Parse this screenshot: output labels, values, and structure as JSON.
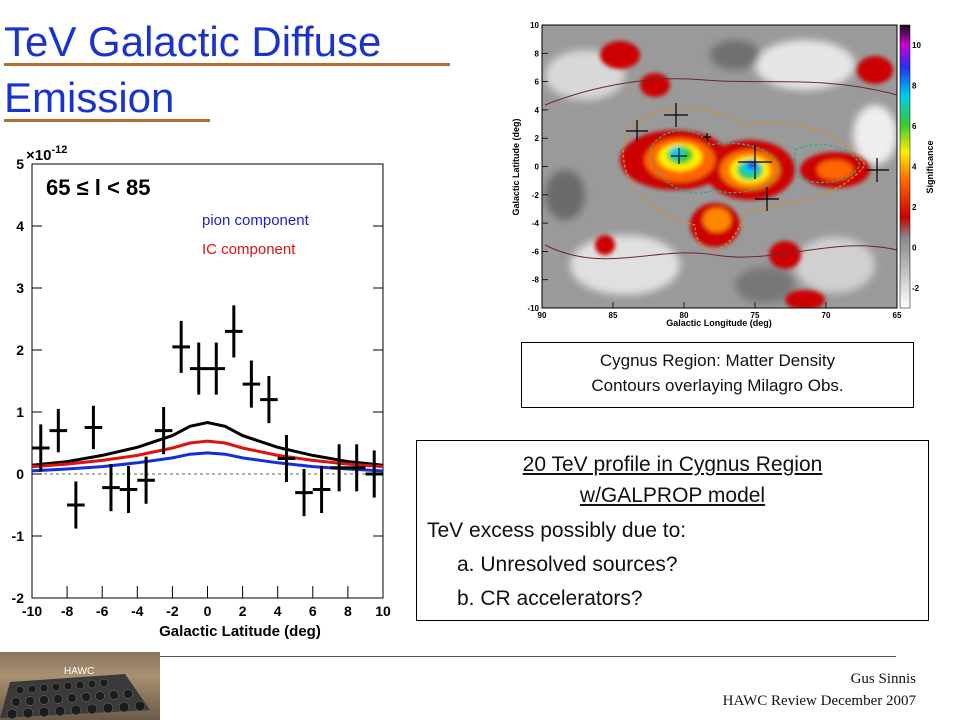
{
  "title": {
    "line1": "TeV Galactic Diffuse",
    "line2": "Emission"
  },
  "plot": {
    "exponent_label": "×10",
    "exponent_power": "-12",
    "range_label": "65 ≤ l < 85",
    "legend_pion": "pion component",
    "legend_ic": "IC component",
    "xlabel": "Galactic Latitude (deg)",
    "xticks": [
      "-10",
      "-8",
      "-6",
      "-4",
      "-2",
      "0",
      "2",
      "4",
      "6",
      "8",
      "10"
    ],
    "yticks": [
      "-2",
      "-1",
      "0",
      "1",
      "2",
      "3",
      "4",
      "5"
    ],
    "colors": {
      "total": "#000000",
      "pion": "#e01010",
      "ic": "#1030e0"
    }
  },
  "chart_data": {
    "type": "scatter",
    "xlabel": "Galactic Latitude (deg)",
    "ylabel": "",
    "xlim": [
      -10,
      10
    ],
    "ylim": [
      -2,
      5
    ],
    "y_scale_factor": "×10^-12",
    "annotation": "65 ≤ l < 85",
    "series": [
      {
        "name": "data",
        "x": [
          -9.5,
          -8.5,
          -7.5,
          -6.5,
          -5.5,
          -4.5,
          -3.5,
          -2.5,
          -1.5,
          -0.5,
          0.5,
          1.5,
          2.5,
          3.5,
          4.5,
          5.5,
          6.5,
          7.5,
          8.5,
          9.5
        ],
        "y": [
          0.42,
          0.7,
          -0.5,
          0.75,
          -0.22,
          -0.25,
          -0.1,
          0.7,
          2.05,
          1.7,
          1.7,
          2.3,
          1.45,
          1.2,
          0.25,
          -0.3,
          -0.25,
          0.1,
          0.1,
          0.0
        ],
        "yerr": [
          0.38,
          0.35,
          0.38,
          0.35,
          0.38,
          0.38,
          0.38,
          0.38,
          0.42,
          0.42,
          0.42,
          0.42,
          0.38,
          0.38,
          0.38,
          0.38,
          0.38,
          0.38,
          0.38,
          0.38
        ]
      },
      {
        "name": "total",
        "x": [
          -10,
          -8,
          -6,
          -4,
          -2,
          -1,
          0,
          1,
          2,
          4,
          6,
          8,
          10
        ],
        "y": [
          0.14,
          0.2,
          0.3,
          0.43,
          0.62,
          0.77,
          0.83,
          0.77,
          0.62,
          0.43,
          0.3,
          0.2,
          0.14
        ]
      },
      {
        "name": "pion component",
        "x": [
          -10,
          -8,
          -6,
          -4,
          -2,
          -1,
          0,
          1,
          2,
          4,
          6,
          8,
          10
        ],
        "y": [
          0.12,
          0.16,
          0.22,
          0.3,
          0.42,
          0.5,
          0.53,
          0.5,
          0.42,
          0.3,
          0.22,
          0.16,
          0.12
        ]
      },
      {
        "name": "IC component",
        "x": [
          -10,
          -8,
          -6,
          -4,
          -2,
          -1,
          0,
          1,
          2,
          4,
          6,
          8,
          10
        ],
        "y": [
          0.05,
          0.08,
          0.12,
          0.18,
          0.26,
          0.32,
          0.34,
          0.32,
          0.26,
          0.18,
          0.12,
          0.08,
          0.05
        ]
      }
    ]
  },
  "skymap": {
    "xlabel": "Galactic Longitude (deg)",
    "ylabel": "Galactic Latitude (deg)",
    "zlabel": "Significance",
    "xticks": [
      "90",
      "85",
      "80",
      "75",
      "70",
      "65"
    ],
    "yticks": [
      "10",
      "8",
      "6",
      "4",
      "2",
      "0",
      "-2",
      "-4",
      "-6",
      "-8",
      "-10"
    ],
    "zticks": [
      "10",
      "8",
      "6",
      "4",
      "2",
      "0",
      "-2"
    ]
  },
  "caption": {
    "line1": "Cygnus Region: Matter Density",
    "line2": "Contours overlaying Milagro Obs."
  },
  "profile_box": {
    "heading_line1": "20 TeV profile in Cygnus Region",
    "heading_line2": "w/GALPROP model",
    "line": "TeV excess possibly due to:",
    "item_a": "a. Unresolved sources?",
    "item_b": "b. CR accelerators?"
  },
  "photo": {
    "label": "HAWC"
  },
  "footer": {
    "author": "Gus Sinnis",
    "event": "HAWC Review December 2007"
  }
}
